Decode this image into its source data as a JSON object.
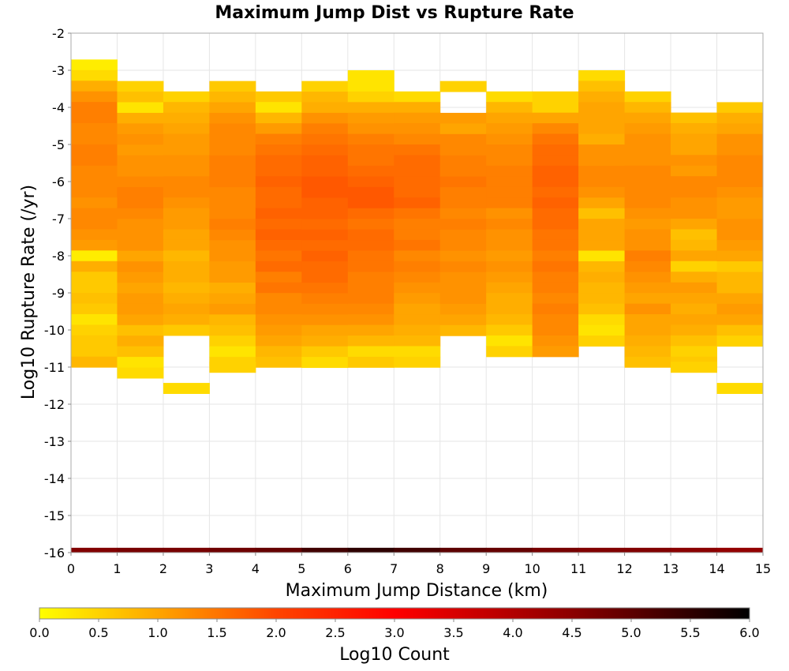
{
  "chart_data": {
    "type": "heatmap",
    "title": "Maximum Jump Dist vs Rupture Rate",
    "xlabel": "Maximum Jump Distance (km)",
    "ylabel": "Log10 Rupture Rate (/yr)",
    "xlim": [
      0,
      15
    ],
    "ylim": [
      -16,
      -2
    ],
    "x_ticks": [
      "0",
      "1",
      "2",
      "3",
      "4",
      "5",
      "6",
      "7",
      "8",
      "9",
      "10",
      "11",
      "12",
      "13",
      "14",
      "15"
    ],
    "y_ticks": [
      "-2",
      "-3",
      "-4",
      "-5",
      "-6",
      "-7",
      "-8",
      "-9",
      "-10",
      "-11",
      "-12",
      "-13",
      "-14",
      "-15",
      "-16"
    ],
    "grid": true,
    "bin_width_x": 1,
    "bin_height_y": 0.286,
    "colorbar": {
      "label": "Log10 Count",
      "range": [
        0,
        6
      ],
      "ticks": [
        "0.0",
        "0.5",
        "1.0",
        "1.5",
        "2.0",
        "2.5",
        "3.0",
        "3.5",
        "4.0",
        "4.5",
        "5.0",
        "5.5",
        "6.0"
      ],
      "colors": [
        "#ffff00",
        "#ffa500",
        "#ff4500",
        "#ff0000",
        "#8b0000",
        "#000000"
      ],
      "color_stops": [
        0,
        1,
        2,
        3,
        4.5,
        6
      ]
    },
    "columns": [
      {
        "x": 0.5,
        "y_top": -2.71,
        "values": [
          0.2,
          0.4,
          0.9,
          1.2,
          1.4,
          1.4,
          1.3,
          1.3,
          1.4,
          1.4,
          1.3,
          1.3,
          1.3,
          1.2,
          1.3,
          1.3,
          1.2,
          1.1,
          0.2,
          0.9,
          0.6,
          0.6,
          0.7,
          0.6,
          0.3,
          0.5,
          0.6,
          0.6,
          0.8
        ]
      },
      {
        "x": 1.5,
        "y_top": -3.29,
        "values": [
          0.5,
          0.7,
          0.3,
          0.9,
          1.1,
          1.2,
          1.1,
          1.2,
          1.2,
          1.3,
          1.4,
          1.4,
          1.3,
          1.2,
          1.2,
          1.2,
          1.0,
          1.2,
          1.1,
          1.0,
          1.1,
          1.1,
          1.0,
          0.7,
          0.9,
          0.7,
          0.3,
          0.4
        ]
      },
      {
        "x": 2.5,
        "y_top": -3.57,
        "values": [
          0.5,
          0.8,
          0.9,
          1.0,
          1.1,
          1.1,
          1.2,
          1.2,
          1.3,
          1.3,
          1.2,
          1.1,
          1.1,
          1.0,
          1.0,
          0.8,
          0.9,
          0.9,
          0.8,
          0.9,
          1.0,
          0.9,
          0.6
        ]
      },
      {
        "x": 3.5,
        "y_top": -3.29,
        "values": [
          0.6,
          0.8,
          1.0,
          1.2,
          1.3,
          1.3,
          1.3,
          1.4,
          1.4,
          1.4,
          1.3,
          1.3,
          1.3,
          1.4,
          1.3,
          1.2,
          1.2,
          1.1,
          1.1,
          0.9,
          1.0,
          1.1,
          0.8,
          0.7,
          0.5,
          0.3,
          0.5
        ]
      },
      {
        "x": 4.5,
        "y_top": -3.57,
        "values": [
          0.6,
          0.3,
          0.8,
          1.1,
          1.4,
          1.5,
          1.6,
          1.6,
          1.7,
          1.6,
          1.6,
          1.7,
          1.6,
          1.7,
          1.6,
          1.5,
          1.6,
          1.4,
          1.5,
          1.3,
          1.3,
          1.2,
          1.1,
          1.0,
          0.8,
          0.7
        ]
      },
      {
        "x": 5.5,
        "y_top": -3.29,
        "values": [
          0.5,
          0.8,
          0.9,
          1.2,
          1.4,
          1.5,
          1.6,
          1.7,
          1.7,
          1.8,
          1.8,
          1.7,
          1.7,
          1.6,
          1.7,
          1.6,
          1.7,
          1.6,
          1.6,
          1.5,
          1.4,
          1.3,
          1.2,
          1.0,
          0.9,
          0.6,
          0.4
        ]
      },
      {
        "x": 6.5,
        "y_top": -3.0,
        "values": [
          0.3,
          0.3,
          0.5,
          0.9,
          1.1,
          1.2,
          1.4,
          1.5,
          1.5,
          1.6,
          1.7,
          1.8,
          1.8,
          1.6,
          1.5,
          1.6,
          1.6,
          1.5,
          1.5,
          1.4,
          1.4,
          1.4,
          1.3,
          1.2,
          1.0,
          0.8,
          0.4,
          0.6
        ]
      },
      {
        "x": 7.5,
        "y_top": -3.57,
        "values": [
          0.4,
          0.9,
          1.1,
          1.2,
          1.3,
          1.5,
          1.6,
          1.6,
          1.6,
          1.6,
          1.7,
          1.5,
          1.4,
          1.4,
          1.5,
          1.3,
          1.4,
          1.3,
          1.2,
          1.1,
          1.0,
          1.0,
          0.9,
          0.8,
          0.4,
          0.5
        ]
      },
      {
        "x": 8.5,
        "y_top": -3.29,
        "values": [
          0.5,
          0.0,
          0.0,
          1.1,
          1.0,
          1.3,
          1.3,
          1.4,
          1.4,
          1.5,
          1.4,
          1.4,
          1.3,
          1.4,
          1.3,
          1.3,
          1.2,
          1.3,
          1.2,
          1.2,
          1.2,
          1.1,
          1.0,
          0.8
        ]
      },
      {
        "x": 9.5,
        "y_top": -3.57,
        "values": [
          0.4,
          0.8,
          1.0,
          1.1,
          1.2,
          1.3,
          1.3,
          1.4,
          1.4,
          1.4,
          1.4,
          1.2,
          1.3,
          1.2,
          1.2,
          1.1,
          1.2,
          1.1,
          1.0,
          0.9,
          0.9,
          0.8,
          0.6,
          0.3,
          0.5
        ]
      },
      {
        "x": 10.5,
        "y_top": -3.57,
        "values": [
          0.5,
          0.5,
          1.0,
          1.3,
          1.5,
          1.6,
          1.6,
          1.7,
          1.7,
          1.6,
          1.7,
          1.6,
          1.6,
          1.5,
          1.5,
          1.4,
          1.5,
          1.4,
          1.4,
          1.3,
          1.4,
          1.3,
          1.3,
          1.2,
          1.1
        ]
      },
      {
        "x": 11.5,
        "y_top": -3.0,
        "values": [
          0.4,
          0.7,
          0.9,
          1.0,
          1.0,
          1.0,
          0.9,
          1.2,
          1.2,
          1.3,
          1.3,
          1.2,
          1.0,
          0.7,
          1.0,
          1.0,
          1.0,
          0.3,
          0.8,
          0.9,
          0.8,
          0.8,
          0.7,
          0.4,
          0.3,
          0.5
        ]
      },
      {
        "x": 12.5,
        "y_top": -3.57,
        "values": [
          0.5,
          0.8,
          1.0,
          1.1,
          1.2,
          1.2,
          1.2,
          1.3,
          1.3,
          1.3,
          1.3,
          1.2,
          1.1,
          1.2,
          1.2,
          1.4,
          1.3,
          1.2,
          1.1,
          1.0,
          1.2,
          1.0,
          1.0,
          0.9,
          0.8,
          0.7
        ]
      },
      {
        "x": 13.5,
        "y_top": -4.14,
        "values": [
          0.7,
          0.9,
          1.0,
          1.0,
          1.2,
          1.1,
          1.3,
          1.3,
          1.2,
          1.2,
          1.0,
          0.7,
          0.8,
          1.0,
          0.5,
          0.9,
          1.1,
          1.0,
          0.9,
          1.0,
          0.9,
          0.7,
          0.5,
          0.6
        ]
      },
      {
        "x": 14.5,
        "y_top": -3.86,
        "values": [
          0.6,
          0.9,
          1.0,
          1.2,
          1.2,
          1.3,
          1.3,
          1.3,
          1.2,
          1.1,
          1.1,
          1.2,
          1.2,
          1.1,
          1.0,
          0.6,
          0.8,
          0.8,
          1.0,
          1.1,
          1.0,
          0.7,
          0.5
        ]
      }
    ],
    "extra_cells": [
      {
        "x": 2.5,
        "y": -11.57,
        "value": 0.4
      },
      {
        "x": 3.5,
        "y": -11.0,
        "value": 0.5
      },
      {
        "x": 13.5,
        "y": -11.0,
        "value": 0.5
      },
      {
        "x": 14.5,
        "y": -11.57,
        "value": 0.4
      }
    ],
    "bottom_row": {
      "y": -16,
      "values": [
        4.6,
        4.7,
        4.7,
        4.8,
        4.9,
        5.3,
        5.5,
        5.3,
        5.0,
        4.9,
        4.7,
        4.6,
        4.6,
        4.5,
        4.4
      ]
    }
  }
}
